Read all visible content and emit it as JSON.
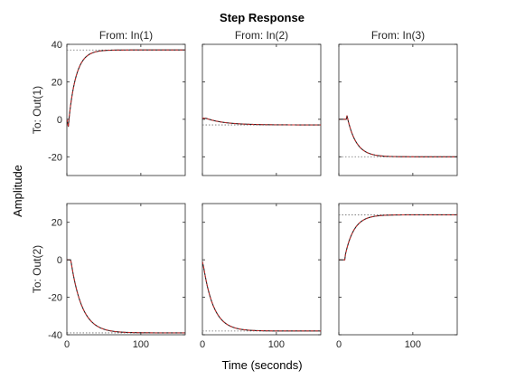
{
  "chart_data": {
    "type": "line",
    "title": "Step Response",
    "xlabel": "Time (seconds)",
    "ylabel": "Amplitude",
    "column_labels": [
      "From: In(1)",
      "From: In(2)",
      "From: In(3)"
    ],
    "row_labels": [
      "To: Out(1)",
      "To: Out(2)"
    ],
    "xlim": [
      0,
      160
    ],
    "xticks": [
      0,
      100
    ],
    "rows": [
      {
        "ylim": [
          -30,
          40
        ],
        "yticks": [
          -20,
          0,
          20,
          40
        ]
      },
      {
        "ylim": [
          -40,
          30
        ],
        "yticks": [
          -40,
          -20,
          0,
          20
        ]
      }
    ],
    "grid": false,
    "colors": {
      "response": "#1f1f1f",
      "overlay": "#d62728",
      "steady_state": "#6e6e6e"
    },
    "subplots": [
      {
        "row": 0,
        "col": 0,
        "initial": 0,
        "final": 37,
        "tau": 10,
        "delay": 2,
        "points": [
          [
            0,
            0
          ],
          [
            2,
            -4
          ],
          [
            5,
            10
          ],
          [
            10,
            19
          ],
          [
            20,
            30
          ],
          [
            30,
            34
          ],
          [
            50,
            36.6
          ],
          [
            70,
            37
          ],
          [
            160,
            37
          ]
        ]
      },
      {
        "row": 0,
        "col": 1,
        "initial": 0,
        "final": -3,
        "tau": 25,
        "delay": 5,
        "points": [
          [
            0,
            0.6
          ],
          [
            5,
            0.5
          ],
          [
            20,
            -1.2
          ],
          [
            40,
            -2.4
          ],
          [
            60,
            -2.8
          ],
          [
            80,
            -3
          ],
          [
            160,
            -3
          ]
        ]
      },
      {
        "row": 0,
        "col": 2,
        "initial": 0,
        "final": -20,
        "tau": 12,
        "delay": 10,
        "points": [
          [
            0,
            0
          ],
          [
            10,
            0
          ],
          [
            11,
            2
          ],
          [
            20,
            -11
          ],
          [
            30,
            -16
          ],
          [
            50,
            -19.2
          ],
          [
            70,
            -19.9
          ],
          [
            160,
            -20
          ]
        ]
      },
      {
        "row": 1,
        "col": 0,
        "initial": 0,
        "final": -39,
        "tau": 15,
        "delay": 5,
        "points": [
          [
            0,
            0
          ],
          [
            5,
            0
          ],
          [
            15,
            -18
          ],
          [
            30,
            -31
          ],
          [
            50,
            -37
          ],
          [
            80,
            -38.8
          ],
          [
            160,
            -39
          ]
        ]
      },
      {
        "row": 1,
        "col": 1,
        "initial": 0,
        "final": -38,
        "tau": 14,
        "delay": 1,
        "points": [
          [
            0,
            -1
          ],
          [
            10,
            -19
          ],
          [
            20,
            -28
          ],
          [
            40,
            -35
          ],
          [
            70,
            -37.6
          ],
          [
            160,
            -38
          ]
        ]
      },
      {
        "row": 1,
        "col": 2,
        "initial": 0,
        "final": 24,
        "tau": 12,
        "delay": 8,
        "points": [
          [
            0,
            0
          ],
          [
            8,
            0
          ],
          [
            9,
            3
          ],
          [
            20,
            15
          ],
          [
            35,
            21
          ],
          [
            60,
            23.5
          ],
          [
            160,
            24
          ]
        ]
      }
    ]
  }
}
